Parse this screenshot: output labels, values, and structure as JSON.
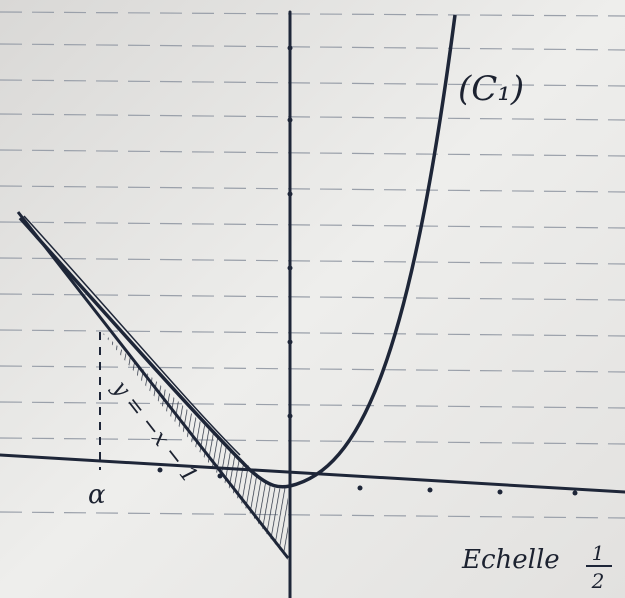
{
  "labels": {
    "curve": "(C₁)",
    "asymptote": "y = −x − 1",
    "alpha": "α",
    "scale": "Echelle",
    "scale_numerator": "1",
    "scale_denominator": "2"
  }
}
